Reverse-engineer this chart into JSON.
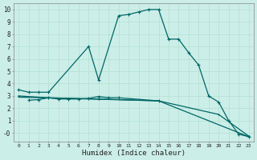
{
  "xlabel": "Humidex (Indice chaleur)",
  "background_color": "#cceee8",
  "line_color": "#006666",
  "grid_color": "#aaddcc",
  "line1": {
    "x": [
      0,
      1,
      2,
      3,
      7,
      8,
      10,
      11,
      12,
      13,
      14,
      15,
      16,
      17,
      18,
      19,
      20,
      21,
      22,
      23
    ],
    "y": [
      3.5,
      3.3,
      3.3,
      3.3,
      7.0,
      4.3,
      9.5,
      9.6,
      9.8,
      10.0,
      10.0,
      7.6,
      7.6,
      6.5,
      5.5,
      3.0,
      2.5,
      1.0,
      -0.1,
      -0.3
    ]
  },
  "line2": {
    "x": [
      1,
      2,
      3,
      4,
      5,
      6,
      7,
      8,
      9,
      10,
      14
    ],
    "y": [
      2.65,
      2.7,
      2.85,
      2.75,
      2.75,
      2.75,
      2.8,
      2.95,
      2.85,
      2.85,
      2.6
    ]
  },
  "line3": {
    "x": [
      0,
      3,
      8,
      14,
      20,
      23
    ],
    "y": [
      3.0,
      2.85,
      2.75,
      2.6,
      1.5,
      -0.25
    ]
  },
  "line4": {
    "x": [
      0,
      14,
      23
    ],
    "y": [
      2.9,
      2.6,
      -0.3
    ]
  },
  "xlim": [
    -0.5,
    23.5
  ],
  "ylim": [
    -0.7,
    10.5
  ],
  "yticks": [
    0,
    1,
    2,
    3,
    4,
    5,
    6,
    7,
    8,
    9,
    10
  ],
  "xticks": [
    0,
    1,
    2,
    3,
    4,
    5,
    6,
    7,
    8,
    9,
    10,
    11,
    12,
    13,
    14,
    15,
    16,
    17,
    18,
    19,
    20,
    21,
    22,
    23
  ]
}
